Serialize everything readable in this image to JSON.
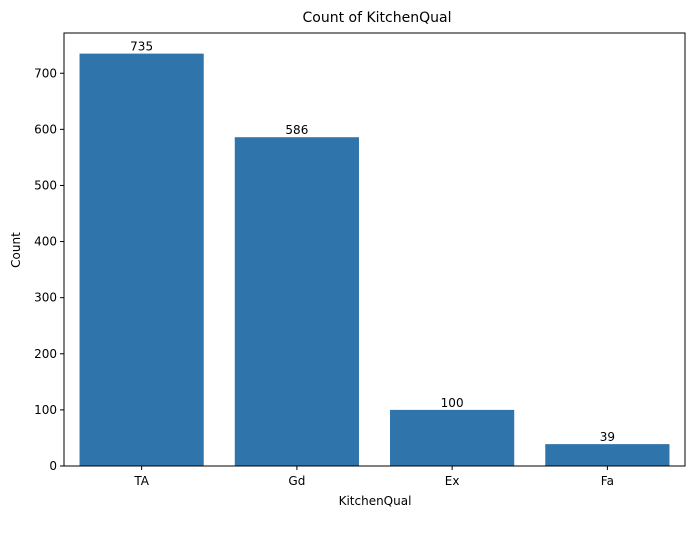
{
  "chart_data": {
    "type": "bar",
    "title": "Count of KitchenQual",
    "xlabel": "KitchenQual",
    "ylabel": "Count",
    "categories": [
      "TA",
      "Gd",
      "Ex",
      "Fa"
    ],
    "values": [
      735,
      586,
      100,
      39
    ],
    "data_labels": [
      "735",
      "586",
      "100",
      "39"
    ],
    "ylim": [
      0,
      771.75
    ],
    "yticks": [
      0,
      100,
      200,
      300,
      400,
      500,
      600,
      700
    ],
    "grid": false,
    "bar_color": "#2f75ac"
  }
}
